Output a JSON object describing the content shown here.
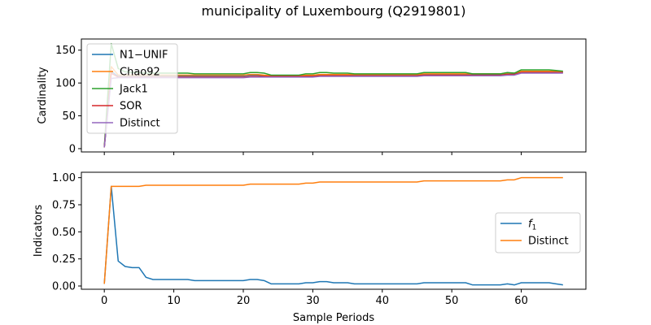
{
  "figure": {
    "title": "municipality of Luxembourg (Q2919801)"
  },
  "chart_data": [
    {
      "type": "line",
      "ylabel": "Cardinality",
      "xlabel": "",
      "xlim": [
        -3.3,
        69.3
      ],
      "ylim": [
        -5,
        167
      ],
      "xticks": [
        0,
        10,
        20,
        30,
        40,
        50,
        60
      ],
      "yticks": [
        0,
        50,
        100,
        150
      ],
      "show_xticklabels": false,
      "legend_position": "upper left",
      "series": [
        {
          "name": "N1−UNIF",
          "color": "#1f77b4",
          "x": [
            0,
            1,
            2,
            3,
            4,
            5,
            6,
            7,
            8,
            9,
            10,
            11,
            12,
            13,
            14,
            15,
            16,
            17,
            18,
            19,
            20,
            21,
            22,
            23,
            24,
            25,
            26,
            27,
            28,
            29,
            30,
            31,
            32,
            33,
            34,
            35,
            36,
            37,
            38,
            39,
            40,
            41,
            42,
            43,
            44,
            45,
            46,
            47,
            48,
            49,
            50,
            51,
            52,
            53,
            54,
            55,
            56,
            57,
            58,
            59,
            60,
            61,
            62,
            63,
            64,
            65,
            66
          ],
          "y": [
            2,
            118,
            110,
            110,
            110,
            110,
            110,
            111,
            111,
            111,
            111,
            111,
            111,
            111,
            111,
            111,
            111,
            111,
            111,
            111,
            111,
            112,
            112,
            111,
            110,
            110,
            110,
            110,
            110,
            111,
            111,
            112,
            112,
            112,
            112,
            112,
            112,
            112,
            112,
            112,
            112,
            112,
            112,
            112,
            112,
            112,
            113,
            113,
            113,
            113,
            113,
            113,
            113,
            113,
            113,
            113,
            113,
            113,
            114,
            114,
            117,
            117,
            117,
            117,
            117,
            117,
            116
          ]
        },
        {
          "name": "Chao92",
          "color": "#ff7f0e",
          "x": [
            0,
            1,
            2,
            3,
            4,
            5,
            6,
            7,
            8,
            9,
            10,
            11,
            12,
            13,
            14,
            15,
            16,
            17,
            18,
            19,
            20,
            21,
            22,
            23,
            24,
            25,
            26,
            27,
            28,
            29,
            30,
            31,
            32,
            33,
            34,
            35,
            36,
            37,
            38,
            39,
            40,
            41,
            42,
            43,
            44,
            45,
            46,
            47,
            48,
            49,
            50,
            51,
            52,
            53,
            54,
            55,
            56,
            57,
            58,
            59,
            60,
            61,
            62,
            63,
            64,
            65,
            66
          ],
          "y": [
            2,
            125,
            112,
            112,
            112,
            112,
            112,
            112,
            112,
            112,
            112,
            112,
            112,
            112,
            112,
            112,
            112,
            112,
            112,
            112,
            112,
            113,
            113,
            112,
            111,
            111,
            111,
            111,
            111,
            112,
            112,
            113,
            113,
            113,
            113,
            113,
            113,
            113,
            113,
            113,
            113,
            113,
            113,
            113,
            113,
            113,
            114,
            114,
            114,
            114,
            114,
            114,
            114,
            114,
            114,
            114,
            114,
            114,
            115,
            115,
            118,
            118,
            118,
            118,
            118,
            118,
            117
          ]
        },
        {
          "name": "Jack1",
          "color": "#2ca02c",
          "x": [
            0,
            1,
            2,
            3,
            4,
            5,
            6,
            7,
            8,
            9,
            10,
            11,
            12,
            13,
            14,
            15,
            16,
            17,
            18,
            19,
            20,
            21,
            22,
            23,
            24,
            25,
            26,
            27,
            28,
            29,
            30,
            31,
            32,
            33,
            34,
            35,
            36,
            37,
            38,
            39,
            40,
            41,
            42,
            43,
            44,
            45,
            46,
            47,
            48,
            49,
            50,
            51,
            52,
            53,
            54,
            55,
            56,
            57,
            58,
            59,
            60,
            61,
            62,
            63,
            64,
            65,
            66
          ],
          "y": [
            3,
            160,
            122,
            117,
            116,
            116,
            115,
            115,
            115,
            115,
            115,
            115,
            115,
            114,
            114,
            114,
            114,
            114,
            114,
            114,
            114,
            116,
            116,
            115,
            112,
            112,
            112,
            112,
            112,
            114,
            114,
            116,
            116,
            115,
            115,
            115,
            114,
            114,
            114,
            114,
            114,
            114,
            114,
            114,
            114,
            114,
            116,
            116,
            116,
            116,
            116,
            116,
            116,
            114,
            114,
            114,
            114,
            114,
            116,
            115,
            120,
            120,
            120,
            120,
            120,
            119,
            118
          ]
        },
        {
          "name": "SOR",
          "color": "#d62728",
          "x": [
            0,
            1,
            2,
            3,
            4,
            5,
            6,
            7,
            8,
            9,
            10,
            11,
            12,
            13,
            14,
            15,
            16,
            17,
            18,
            19,
            20,
            21,
            22,
            23,
            24,
            25,
            26,
            27,
            28,
            29,
            30,
            31,
            32,
            33,
            34,
            35,
            36,
            37,
            38,
            39,
            40,
            41,
            42,
            43,
            44,
            45,
            46,
            47,
            48,
            49,
            50,
            51,
            52,
            53,
            54,
            55,
            56,
            57,
            58,
            59,
            60,
            61,
            62,
            63,
            64,
            65,
            66
          ],
          "y": [
            2,
            115,
            109,
            109,
            109,
            109,
            109,
            109,
            109,
            109,
            109,
            109,
            109,
            109,
            109,
            109,
            109,
            109,
            109,
            109,
            109,
            110,
            110,
            110,
            110,
            110,
            110,
            110,
            110,
            110,
            110,
            111,
            111,
            111,
            111,
            111,
            111,
            111,
            111,
            111,
            111,
            111,
            111,
            111,
            111,
            111,
            112,
            112,
            112,
            112,
            112,
            112,
            112,
            112,
            112,
            112,
            112,
            112,
            113,
            113,
            116,
            116,
            116,
            116,
            116,
            116,
            116
          ]
        },
        {
          "name": "Distinct",
          "color": "#9467bd",
          "x": [
            0,
            1,
            2,
            3,
            4,
            5,
            6,
            7,
            8,
            9,
            10,
            11,
            12,
            13,
            14,
            15,
            16,
            17,
            18,
            19,
            20,
            21,
            22,
            23,
            24,
            25,
            26,
            27,
            28,
            29,
            30,
            31,
            32,
            33,
            34,
            35,
            36,
            37,
            38,
            39,
            40,
            41,
            42,
            43,
            44,
            45,
            46,
            47,
            48,
            49,
            50,
            51,
            52,
            53,
            54,
            55,
            56,
            57,
            58,
            59,
            60,
            61,
            62,
            63,
            64,
            65,
            66
          ],
          "y": [
            2,
            107,
            108,
            108,
            108,
            108,
            108,
            108,
            108,
            108,
            108,
            108,
            108,
            108,
            108,
            108,
            108,
            108,
            108,
            108,
            108,
            109,
            109,
            109,
            109,
            109,
            109,
            109,
            109,
            109,
            109,
            110,
            110,
            110,
            110,
            110,
            110,
            110,
            110,
            110,
            110,
            110,
            110,
            110,
            110,
            110,
            111,
            111,
            111,
            111,
            111,
            111,
            111,
            111,
            111,
            111,
            111,
            111,
            112,
            112,
            115,
            115,
            115,
            115,
            115,
            115,
            115
          ]
        }
      ]
    },
    {
      "type": "line",
      "ylabel": "Indicators",
      "xlabel": "Sample Periods",
      "xlim": [
        -3.3,
        69.3
      ],
      "ylim": [
        -0.03,
        1.05
      ],
      "xticks": [
        0,
        10,
        20,
        30,
        40,
        50,
        60
      ],
      "yticks": [
        0.0,
        0.25,
        0.5,
        0.75,
        1.0
      ],
      "ytick_labels": [
        "0.00",
        "0.25",
        "0.50",
        "0.75",
        "1.00"
      ],
      "show_xticklabels": true,
      "legend_position": "center right",
      "series": [
        {
          "name": "f1",
          "color": "#1f77b4",
          "x": [
            0,
            1,
            2,
            3,
            4,
            5,
            6,
            7,
            8,
            9,
            10,
            11,
            12,
            13,
            14,
            15,
            16,
            17,
            18,
            19,
            20,
            21,
            22,
            23,
            24,
            25,
            26,
            27,
            28,
            29,
            30,
            31,
            32,
            33,
            34,
            35,
            36,
            37,
            38,
            39,
            40,
            41,
            42,
            43,
            44,
            45,
            46,
            47,
            48,
            49,
            50,
            51,
            52,
            53,
            54,
            55,
            56,
            57,
            58,
            59,
            60,
            61,
            62,
            63,
            64,
            65,
            66
          ],
          "y": [
            0.02,
            0.92,
            0.23,
            0.18,
            0.17,
            0.17,
            0.08,
            0.06,
            0.06,
            0.06,
            0.06,
            0.06,
            0.06,
            0.05,
            0.05,
            0.05,
            0.05,
            0.05,
            0.05,
            0.05,
            0.05,
            0.06,
            0.06,
            0.05,
            0.02,
            0.02,
            0.02,
            0.02,
            0.02,
            0.03,
            0.03,
            0.04,
            0.04,
            0.03,
            0.03,
            0.03,
            0.02,
            0.02,
            0.02,
            0.02,
            0.02,
            0.02,
            0.02,
            0.02,
            0.02,
            0.02,
            0.03,
            0.03,
            0.03,
            0.03,
            0.03,
            0.03,
            0.03,
            0.01,
            0.01,
            0.01,
            0.01,
            0.01,
            0.02,
            0.01,
            0.03,
            0.03,
            0.03,
            0.03,
            0.03,
            0.02,
            0.01
          ]
        },
        {
          "name": "Distinct",
          "color": "#ff7f0e",
          "x": [
            0,
            1,
            2,
            3,
            4,
            5,
            6,
            7,
            8,
            9,
            10,
            11,
            12,
            13,
            14,
            15,
            16,
            17,
            18,
            19,
            20,
            21,
            22,
            23,
            24,
            25,
            26,
            27,
            28,
            29,
            30,
            31,
            32,
            33,
            34,
            35,
            36,
            37,
            38,
            39,
            40,
            41,
            42,
            43,
            44,
            45,
            46,
            47,
            48,
            49,
            50,
            51,
            52,
            53,
            54,
            55,
            56,
            57,
            58,
            59,
            60,
            61,
            62,
            63,
            64,
            65,
            66
          ],
          "y": [
            0.02,
            0.92,
            0.92,
            0.92,
            0.92,
            0.92,
            0.93,
            0.93,
            0.93,
            0.93,
            0.93,
            0.93,
            0.93,
            0.93,
            0.93,
            0.93,
            0.93,
            0.93,
            0.93,
            0.93,
            0.93,
            0.94,
            0.94,
            0.94,
            0.94,
            0.94,
            0.94,
            0.94,
            0.94,
            0.95,
            0.95,
            0.96,
            0.96,
            0.96,
            0.96,
            0.96,
            0.96,
            0.96,
            0.96,
            0.96,
            0.96,
            0.96,
            0.96,
            0.96,
            0.96,
            0.96,
            0.97,
            0.97,
            0.97,
            0.97,
            0.97,
            0.97,
            0.97,
            0.97,
            0.97,
            0.97,
            0.97,
            0.97,
            0.98,
            0.98,
            1.0,
            1.0,
            1.0,
            1.0,
            1.0,
            1.0,
            1.0
          ]
        }
      ]
    }
  ]
}
